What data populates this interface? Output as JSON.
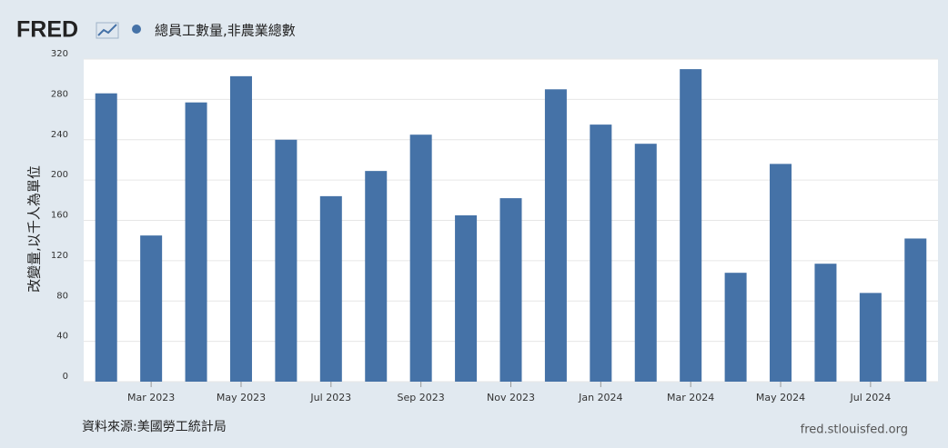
{
  "chart_data": {
    "type": "bar",
    "logo": "FRED",
    "title": "總員工數量,非農業總數",
    "ylabel": "改變量,以千人為單位",
    "source": "資料來源:美國勞工統計局",
    "credit": "fred.stlouisfed.org",
    "categories": [
      null,
      "Mar 2023",
      null,
      "May 2023",
      null,
      "Jul 2023",
      null,
      "Sep 2023",
      null,
      "Nov 2023",
      null,
      "Jan 2024",
      null,
      "Mar 2024",
      null,
      "May 2024",
      null,
      "Jul 2024",
      null
    ],
    "values": [
      286,
      145,
      277,
      303,
      240,
      184,
      209,
      245,
      165,
      182,
      290,
      255,
      236,
      310,
      108,
      216,
      117,
      88,
      142
    ],
    "color": "#4572a7",
    "ylim": [
      0,
      320
    ],
    "yticks": [
      0,
      40,
      80,
      120,
      160,
      200,
      240,
      280,
      320
    ],
    "grid": true
  }
}
